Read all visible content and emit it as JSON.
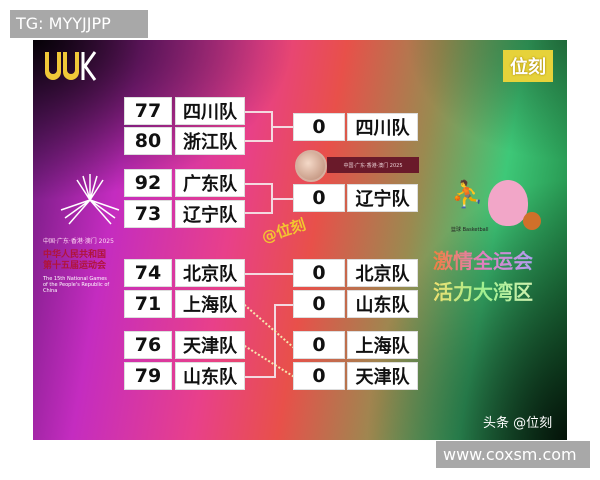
{
  "watermark_top": "TG: MYYJJPP",
  "watermark_bottom": "www.coxsm.com",
  "brand": "位刻",
  "handle": "@位刻",
  "credit": "头条 @位刻",
  "logo_text": "UUK",
  "emblem": {
    "line1": "中国·广东·香港·澳门 2025",
    "line2": "中华人民共和国 第十五届运动会",
    "line3": "The 15th National Games of the People's Republic of China"
  },
  "medal_ribbon": "中国·广东·香港·澳门 2025",
  "mascot_caption": "篮球 Basketball",
  "slogan1": "激情全运会",
  "slogan2": "活力大湾区",
  "round1": [
    {
      "score": "77",
      "team": "四川队"
    },
    {
      "score": "80",
      "team": "浙江队"
    },
    {
      "score": "92",
      "team": "广东队"
    },
    {
      "score": "73",
      "team": "辽宁队"
    },
    {
      "score": "74",
      "team": "北京队"
    },
    {
      "score": "71",
      "team": "上海队"
    },
    {
      "score": "76",
      "team": "天津队"
    },
    {
      "score": "79",
      "team": "山东队"
    }
  ],
  "round2": [
    {
      "score": "0",
      "team": "四川队"
    },
    {
      "score": "0",
      "team": "辽宁队"
    },
    {
      "score": "0",
      "team": "北京队"
    },
    {
      "score": "0",
      "team": "山东队"
    },
    {
      "score": "0",
      "team": "上海队"
    },
    {
      "score": "0",
      "team": "天津队"
    }
  ]
}
